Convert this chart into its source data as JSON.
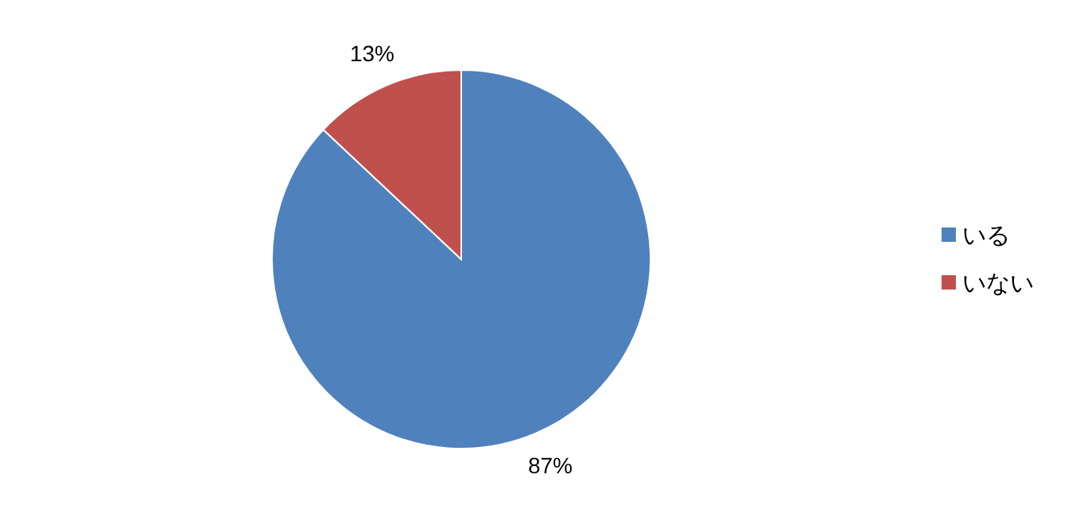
{
  "chart_data": {
    "type": "pie",
    "categories": [
      "いる",
      "いない"
    ],
    "values": [
      87,
      13
    ],
    "colors": [
      "#4f81bd",
      "#c0504d"
    ],
    "value_labels": [
      "87%",
      "13%"
    ],
    "legend": "right"
  }
}
